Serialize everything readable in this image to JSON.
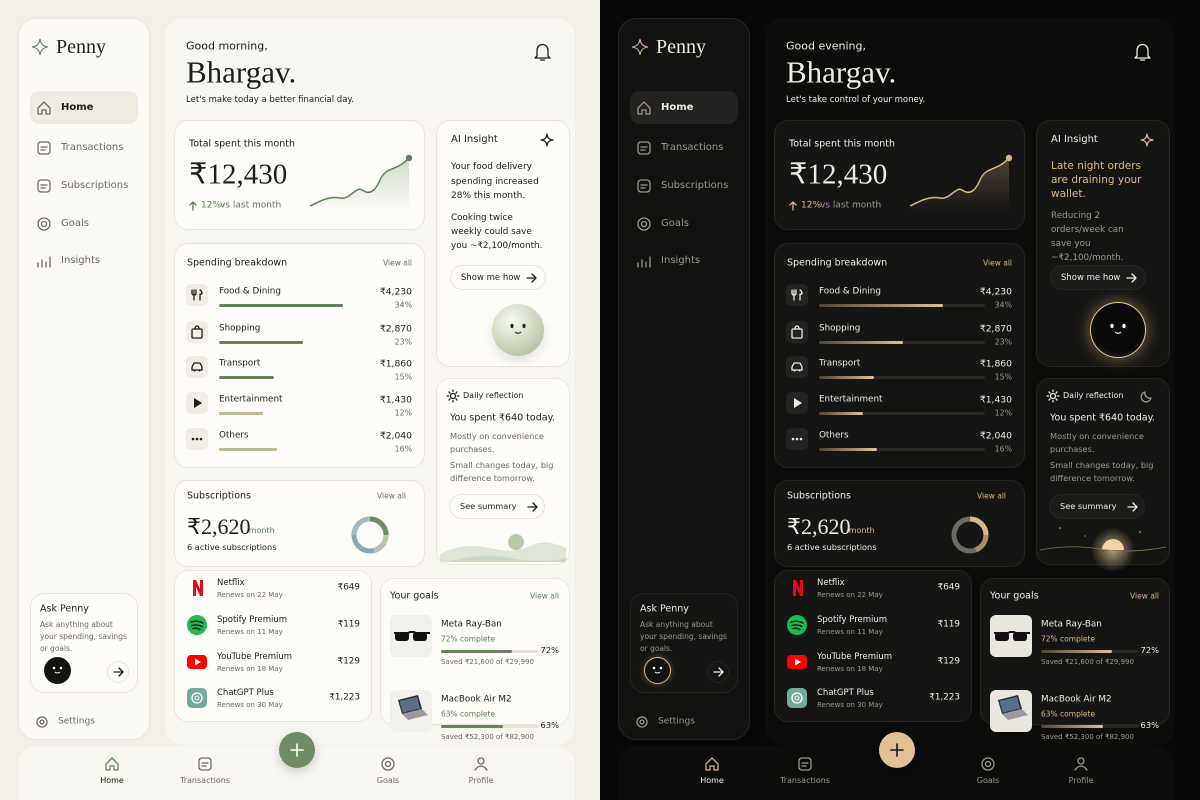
{
  "app_name": "Penny",
  "nav": [
    "Home",
    "Transactions",
    "Subscriptions",
    "Goals",
    "Insights"
  ],
  "ask_penny": {
    "title": "Ask Penny",
    "text": "Ask anything about your spending, savings or goals."
  },
  "settings": "Settings",
  "total_spent": {
    "title": "Total spent this month",
    "amount": "₹12,430",
    "change": "12%",
    "change_text": "vs last month"
  },
  "ai_insight": {
    "title": "AI Insight",
    "button": "Show me how"
  },
  "breakdown": {
    "title": "Spending breakdown",
    "view_all": "View all",
    "items": [
      {
        "name": "Food & Dining",
        "amount": "₹4,230",
        "share": "34%"
      },
      {
        "name": "Shopping",
        "amount": "₹2,870",
        "share": "23%"
      },
      {
        "name": "Transport",
        "amount": "₹1,860",
        "share": "15%"
      },
      {
        "name": "Entertainment",
        "amount": "₹1,430",
        "share": "12%"
      },
      {
        "name": "Others",
        "amount": "₹2,040",
        "share": "16%"
      }
    ]
  },
  "reflection": {
    "title": "Daily reflection",
    "headline": "You spent ₹640 today.",
    "lines": [
      "Mostly on convenience purchases.",
      "Small changes today, big difference tomorrow."
    ],
    "button": "See summary"
  },
  "subscriptions": {
    "title": "Subscriptions",
    "view_all": "View all",
    "amount": "₹2,620",
    "period": "/month",
    "count": "6 active subscriptions",
    "items": [
      {
        "name": "Netflix",
        "renews": "Renews on 22 May",
        "price": "₹649"
      },
      {
        "name": "Spotify Premium",
        "renews": "Renews on 11 May",
        "price": "₹119"
      },
      {
        "name": "YouTube Premium",
        "renews": "Renews on 18 May",
        "price": "₹129"
      },
      {
        "name": "ChatGPT Plus",
        "renews": "Renews on 30 May",
        "price": "₹1,223"
      }
    ]
  },
  "goals": {
    "title": "Your goals",
    "view_all": "View all",
    "items": [
      {
        "name": "Meta Ray-Ban",
        "status": "72% complete",
        "progress": "72%",
        "saved": "Saved ₹21,600 of ₹29,990"
      },
      {
        "name": "MacBook Air M2",
        "status": "63% complete",
        "progress": "63%",
        "saved": "Saved ₹52,300 of ₹82,900"
      }
    ]
  },
  "tabs": [
    "Home",
    "Transactions",
    "Goals",
    "Profile"
  ],
  "screens": [
    {
      "theme": "light",
      "greeting": "Good morning,",
      "name": "Bhargav.",
      "subtitle": "Let's make today a better financial day.",
      "insight_headline": "Your food delivery spending increased 28% this month.",
      "insight_detail": "Cooking twice weekly could save you ~₹2,100/month."
    },
    {
      "theme": "dark",
      "greeting": "Good evening,",
      "name": "Bhargav.",
      "subtitle": "Let's take control of your money.",
      "insight_headline": "Late night orders are draining your wallet.",
      "insight_detail": "Reducing 2 orders/week can save you ~₹2,100/month."
    }
  ]
}
